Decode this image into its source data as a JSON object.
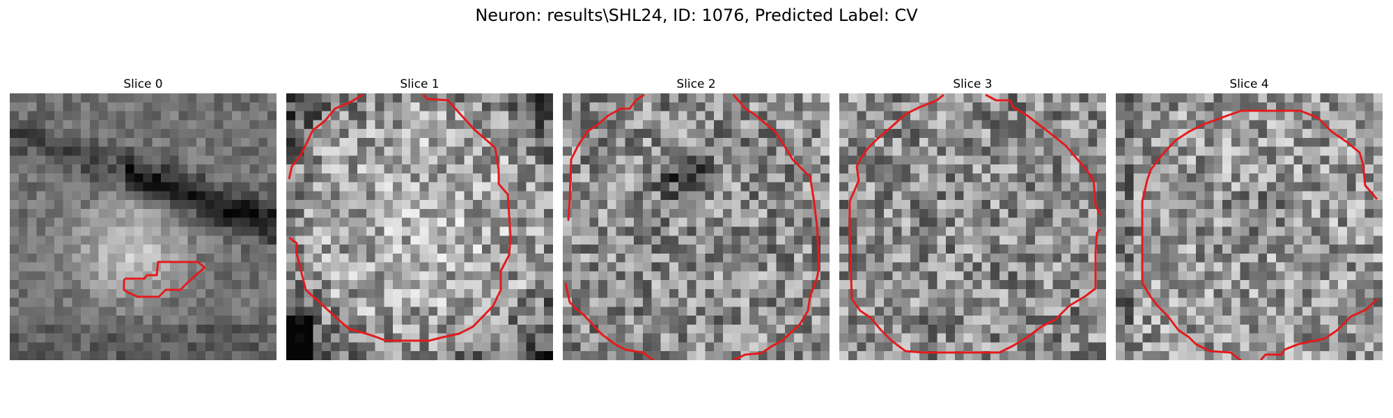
{
  "figure": {
    "title": "Neuron: results\\SHL24, ID: 1076, Predicted Label: CV",
    "overlay_color": "#e41a1c",
    "colormap": "gray"
  },
  "panels": [
    {
      "title": "Slice 0",
      "seed": 11,
      "brightness": "bright-blob-upper-dark-band"
    },
    {
      "title": "Slice 1",
      "seed": 23,
      "brightness": "bright-center-dark-corners"
    },
    {
      "title": "Slice 2",
      "seed": 37,
      "brightness": "noisy-dark-spot-upper-left"
    },
    {
      "title": "Slice 3",
      "seed": 41,
      "brightness": "noisy-uniform"
    },
    {
      "title": "Slice 4",
      "seed": 53,
      "brightness": "noisy-dark-rim"
    }
  ]
}
